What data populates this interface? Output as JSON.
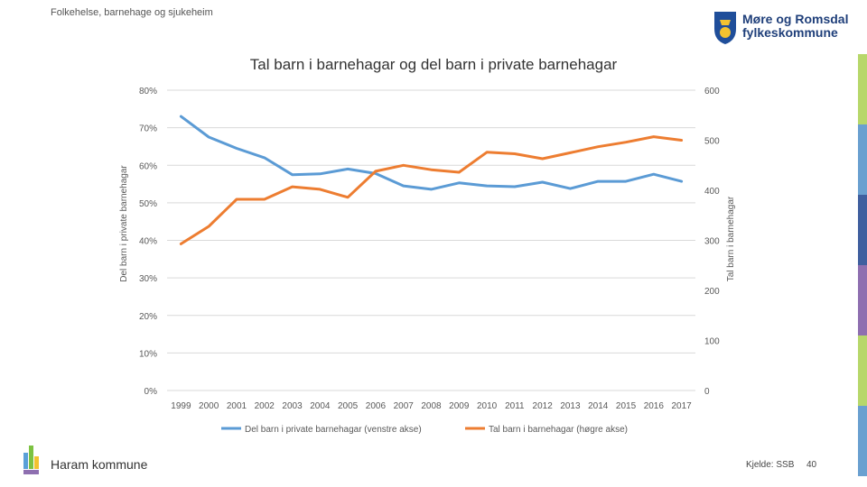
{
  "header": {
    "section": "Folkehelse, barnehage og sjukeheim"
  },
  "logo": {
    "line1": "Møre og Romsdal",
    "line2": "fylkeskommune",
    "brand_color": "#1f3f7a"
  },
  "side_stripes": [
    "#b7d76b",
    "#6aa0d0",
    "#3f5f9f",
    "#8e6fb0",
    "#b7d76b",
    "#6aa0d0"
  ],
  "footer": {
    "municipality": "Haram kommune",
    "source": "Kjelde: SSB",
    "page": "40"
  },
  "chart_data": {
    "type": "line",
    "title": "Tal barn i barnehagar og del barn i private barnehagar",
    "ylabel_left": "Del barn i private barnehagar",
    "ylabel_right": "Tal barn i barnehagar",
    "x": [
      "1999",
      "2000",
      "2001",
      "2002",
      "2003",
      "2004",
      "2005",
      "2006",
      "2007",
      "2008",
      "2009",
      "2010",
      "2011",
      "2012",
      "2013",
      "2014",
      "2015",
      "2016",
      "2017"
    ],
    "left_axis": {
      "ylim": [
        0,
        0.8
      ],
      "ticks": [
        "0%",
        "10%",
        "20%",
        "30%",
        "40%",
        "50%",
        "60%",
        "70%",
        "80%"
      ]
    },
    "right_axis": {
      "ylim": [
        0,
        600
      ],
      "ticks": [
        "0",
        "100",
        "200",
        "300",
        "400",
        "500",
        "600"
      ]
    },
    "series": [
      {
        "name": "Del barn i private barnehagar (venstre akse)",
        "axis": "left",
        "color": "#5b9bd5",
        "values": [
          0.73,
          0.675,
          0.645,
          0.62,
          0.575,
          0.577,
          0.59,
          0.578,
          0.545,
          0.536,
          0.553,
          0.545,
          0.543,
          0.555,
          0.538,
          0.557,
          0.557,
          0.576,
          0.557
        ]
      },
      {
        "name": "Tal barn i barnehagar (høgre akse)",
        "axis": "right",
        "color": "#ed7d31",
        "values": [
          293,
          328,
          382,
          382,
          407,
          402,
          386,
          438,
          450,
          441,
          436,
          476,
          473,
          463,
          475,
          487,
          496,
          507,
          500
        ]
      }
    ]
  }
}
